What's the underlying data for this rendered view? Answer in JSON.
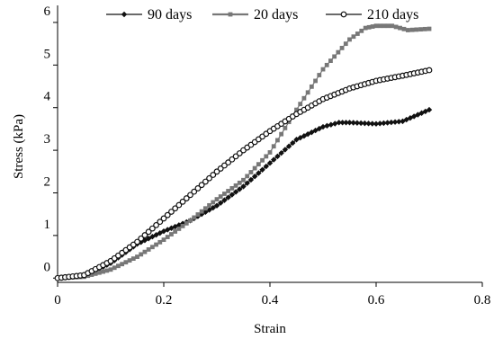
{
  "chart_data": {
    "type": "line",
    "xlabel": "Strain",
    "ylabel": "Stress (kPa)",
    "xlim": [
      0,
      0.8
    ],
    "ylim": [
      -0.1,
      6.4
    ],
    "x_ticks": [
      "0",
      "0.2",
      "0.4",
      "0.6",
      "0.8"
    ],
    "y_ticks": [
      "0",
      "1",
      "2",
      "3",
      "4",
      "5",
      "6"
    ],
    "legend_position": "top",
    "grid": false,
    "series": [
      {
        "name": "90 days",
        "marker": "diamond-filled",
        "color": "#111111",
        "points": [
          [
            0,
            0
          ],
          [
            0.05,
            0.05
          ],
          [
            0.1,
            0.35
          ],
          [
            0.15,
            0.8
          ],
          [
            0.2,
            1.1
          ],
          [
            0.25,
            1.35
          ],
          [
            0.3,
            1.7
          ],
          [
            0.35,
            2.15
          ],
          [
            0.4,
            2.7
          ],
          [
            0.45,
            3.25
          ],
          [
            0.5,
            3.55
          ],
          [
            0.53,
            3.65
          ],
          [
            0.55,
            3.65
          ],
          [
            0.6,
            3.62
          ],
          [
            0.65,
            3.68
          ],
          [
            0.7,
            3.95
          ]
        ]
      },
      {
        "name": "20 days",
        "marker": "square-filled",
        "color": "#777777",
        "points": [
          [
            0,
            0
          ],
          [
            0.05,
            0.03
          ],
          [
            0.1,
            0.2
          ],
          [
            0.15,
            0.5
          ],
          [
            0.2,
            0.9
          ],
          [
            0.25,
            1.35
          ],
          [
            0.3,
            1.85
          ],
          [
            0.35,
            2.3
          ],
          [
            0.4,
            2.95
          ],
          [
            0.45,
            3.95
          ],
          [
            0.5,
            4.9
          ],
          [
            0.55,
            5.6
          ],
          [
            0.58,
            5.87
          ],
          [
            0.6,
            5.92
          ],
          [
            0.63,
            5.92
          ],
          [
            0.66,
            5.82
          ],
          [
            0.7,
            5.85
          ]
        ]
      },
      {
        "name": "210 days",
        "marker": "circle-open",
        "color": "#111111",
        "points": [
          [
            0,
            0
          ],
          [
            0.05,
            0.07
          ],
          [
            0.1,
            0.4
          ],
          [
            0.15,
            0.85
          ],
          [
            0.2,
            1.4
          ],
          [
            0.25,
            1.95
          ],
          [
            0.3,
            2.5
          ],
          [
            0.35,
            3.0
          ],
          [
            0.4,
            3.45
          ],
          [
            0.45,
            3.85
          ],
          [
            0.5,
            4.2
          ],
          [
            0.55,
            4.45
          ],
          [
            0.6,
            4.63
          ],
          [
            0.65,
            4.75
          ],
          [
            0.7,
            4.88
          ]
        ]
      }
    ]
  }
}
